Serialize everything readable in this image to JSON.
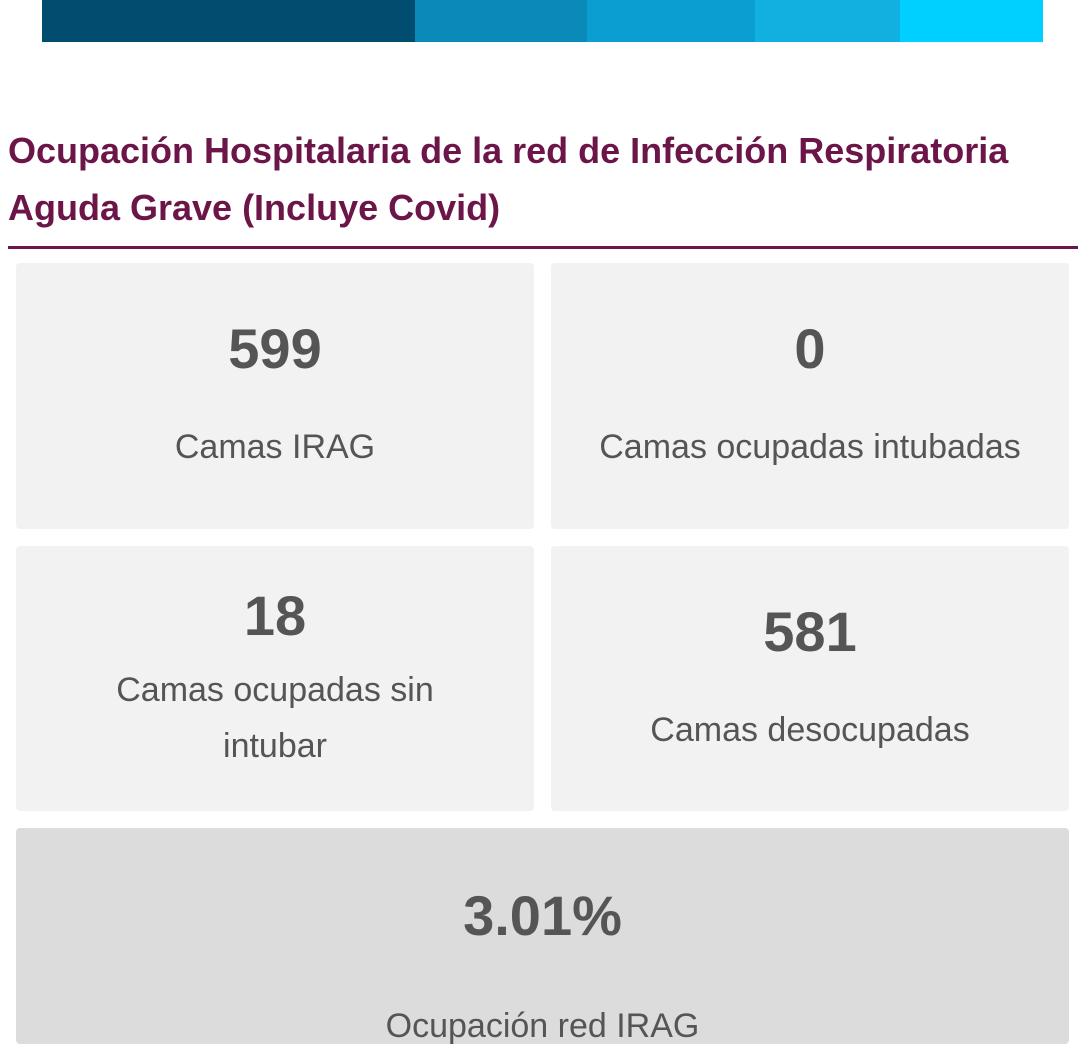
{
  "header": {
    "title": "Ocupación Hospitalaria de la red de Infección Respiratoria Aguda Grave (Incluye Covid)"
  },
  "cards": [
    {
      "value": "599",
      "label": "Camas IRAG"
    },
    {
      "value": "0",
      "label": "Camas ocupadas intubadas"
    },
    {
      "value": "18",
      "label": "Camas ocupadas sin intubar"
    },
    {
      "value": "581",
      "label": "Camas desocupadas"
    },
    {
      "value": "3.01%",
      "label": "Ocupación red IRAG"
    }
  ]
}
